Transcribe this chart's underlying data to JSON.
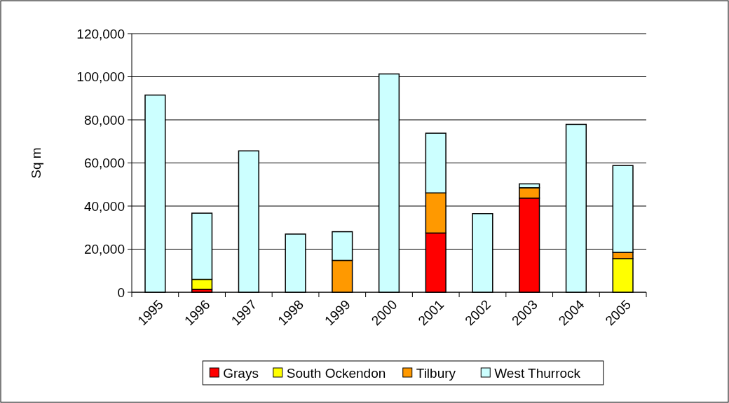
{
  "chart_data": {
    "type": "bar",
    "stacked": true,
    "ylabel": "Sq m",
    "categories": [
      "1995",
      "1996",
      "1997",
      "1998",
      "1999",
      "2000",
      "2001",
      "2002",
      "2003",
      "2004",
      "2005"
    ],
    "series": [
      {
        "name": "Grays",
        "color": "#ff0000",
        "values": [
          0,
          1400,
          0,
          0,
          0,
          0,
          27500,
          null,
          43700,
          0,
          0
        ]
      },
      {
        "name": "South Ockendon",
        "color": "#ffff00",
        "values": [
          0,
          4600,
          0,
          0,
          0,
          0,
          0,
          0,
          0,
          0,
          15600
        ]
      },
      {
        "name": "Tilbury",
        "color": "#ff9900",
        "values": [
          0,
          0,
          0,
          0,
          14800,
          0,
          18600,
          0,
          4800,
          0,
          2900
        ]
      },
      {
        "name": "West Thurrock",
        "color": "#ccffff",
        "values": [
          91500,
          30700,
          65600,
          27000,
          13300,
          101300,
          27700,
          36500,
          1800,
          77900,
          40300
        ]
      }
    ],
    "ylim": [
      0,
      120000
    ],
    "yticks": [
      {
        "value": 0,
        "label": "0"
      },
      {
        "value": 20000,
        "label": "20,000"
      },
      {
        "value": 40000,
        "label": "40,000"
      },
      {
        "value": 60000,
        "label": "60,000"
      },
      {
        "value": 80000,
        "label": "80,000"
      },
      {
        "value": 100000,
        "label": "100,000"
      },
      {
        "value": 120000,
        "label": "120,000"
      }
    ],
    "grid": "y",
    "legend": "bottom"
  }
}
